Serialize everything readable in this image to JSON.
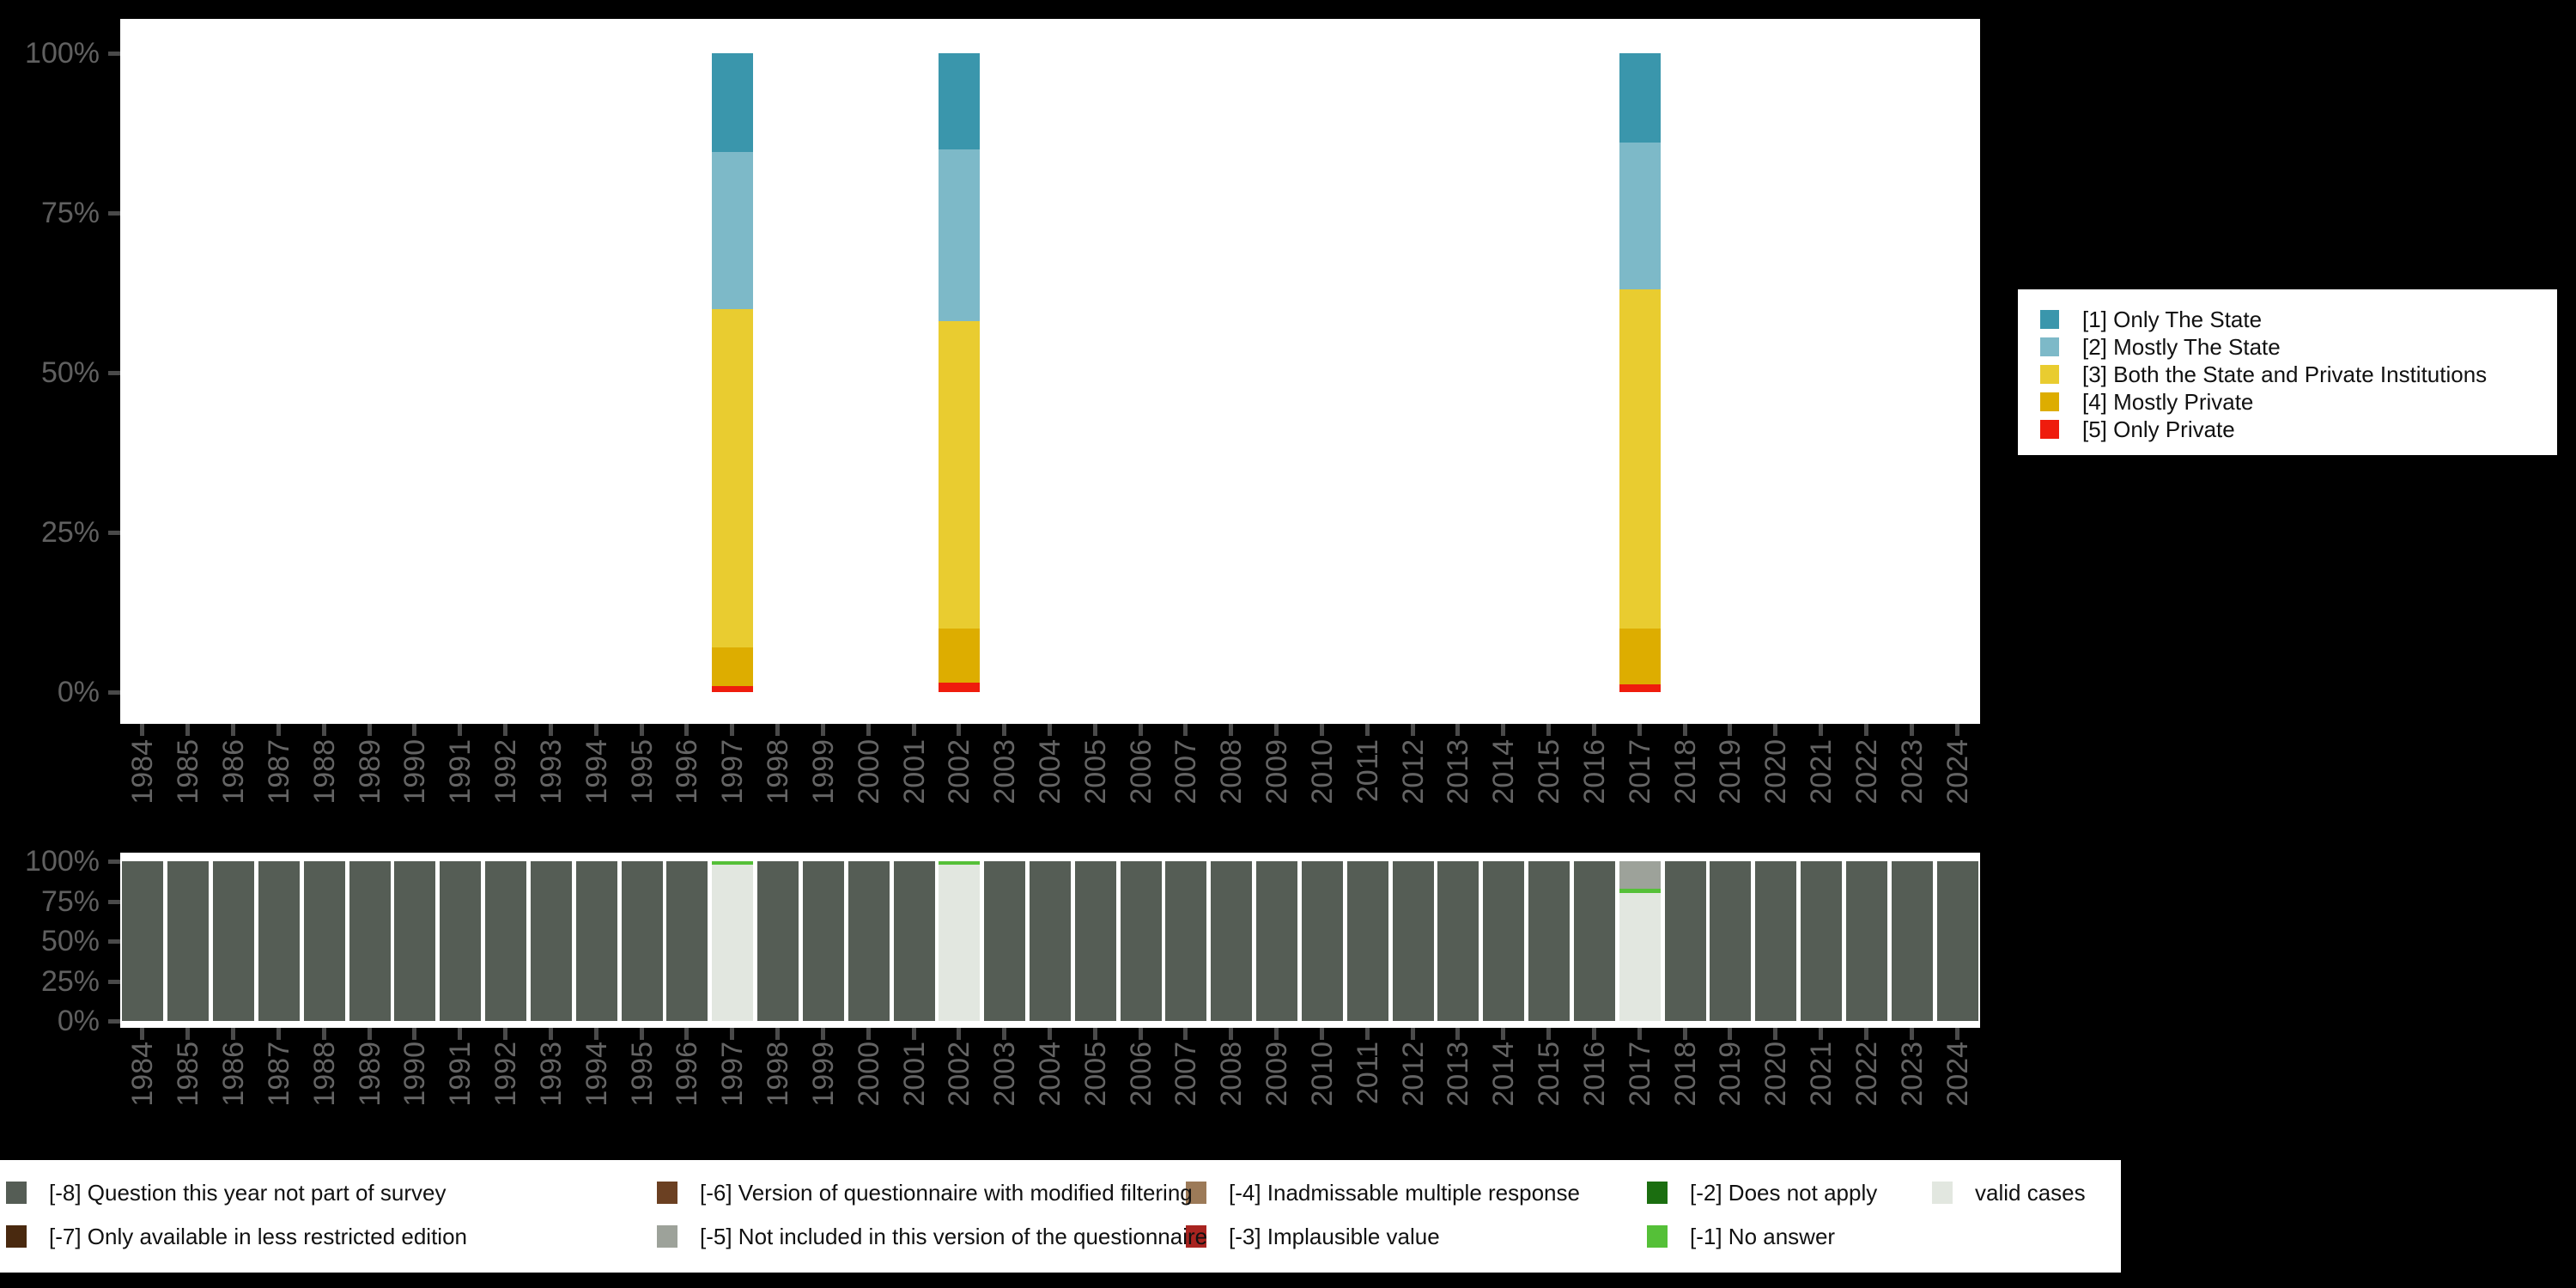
{
  "background_color": "#000000",
  "axis": {
    "tick_color": "#4a4a4a",
    "label_color": "#606060",
    "yticks": [
      "100%",
      "75%",
      "50%",
      "25%",
      "0%"
    ]
  },
  "chart_data": [
    {
      "id": "responses-by-year",
      "type": "bar",
      "stacked": true,
      "unit": "percent",
      "ylim": [
        0,
        100
      ],
      "grid": false,
      "legend_position": "right",
      "x": [
        "1984",
        "1985",
        "1986",
        "1987",
        "1988",
        "1989",
        "1990",
        "1991",
        "1992",
        "1993",
        "1994",
        "1995",
        "1996",
        "1997",
        "1998",
        "1999",
        "2000",
        "2001",
        "2002",
        "2003",
        "2004",
        "2005",
        "2006",
        "2007",
        "2008",
        "2009",
        "2010",
        "2011",
        "2012",
        "2013",
        "2014",
        "2015",
        "2016",
        "2017",
        "2018",
        "2019",
        "2020",
        "2021",
        "2022",
        "2023",
        "2024"
      ],
      "yticks": [
        "100%",
        "75%",
        "50%",
        "25%",
        "0%"
      ],
      "series": [
        {
          "name": "[1] Only The State",
          "color": "#3a96ac",
          "values": [
            0,
            0,
            0,
            0,
            0,
            0,
            0,
            0,
            0,
            0,
            0,
            0,
            0,
            15.5,
            0,
            0,
            0,
            0,
            15,
            0,
            0,
            0,
            0,
            0,
            0,
            0,
            0,
            0,
            0,
            0,
            0,
            0,
            0,
            14,
            0,
            0,
            0,
            0,
            0,
            0,
            0
          ]
        },
        {
          "name": "[2] Mostly The State",
          "color": "#7db9c8",
          "values": [
            0,
            0,
            0,
            0,
            0,
            0,
            0,
            0,
            0,
            0,
            0,
            0,
            0,
            24.5,
            0,
            0,
            0,
            0,
            27,
            0,
            0,
            0,
            0,
            0,
            0,
            0,
            0,
            0,
            0,
            0,
            0,
            0,
            0,
            23,
            0,
            0,
            0,
            0,
            0,
            0,
            0
          ]
        },
        {
          "name": "[3] Both the State and Private Institutions",
          "color": "#e9cc30",
          "values": [
            0,
            0,
            0,
            0,
            0,
            0,
            0,
            0,
            0,
            0,
            0,
            0,
            0,
            53,
            0,
            0,
            0,
            0,
            48,
            0,
            0,
            0,
            0,
            0,
            0,
            0,
            0,
            0,
            0,
            0,
            0,
            0,
            0,
            53,
            0,
            0,
            0,
            0,
            0,
            0,
            0
          ]
        },
        {
          "name": "[4] Mostly Private",
          "color": "#ddad00",
          "values": [
            0,
            0,
            0,
            0,
            0,
            0,
            0,
            0,
            0,
            0,
            0,
            0,
            0,
            6,
            0,
            0,
            0,
            0,
            8.5,
            0,
            0,
            0,
            0,
            0,
            0,
            0,
            0,
            0,
            0,
            0,
            0,
            0,
            0,
            8.8,
            0,
            0,
            0,
            0,
            0,
            0,
            0
          ]
        },
        {
          "name": "[5] Only Private",
          "color": "#ef1c0d",
          "values": [
            0,
            0,
            0,
            0,
            0,
            0,
            0,
            0,
            0,
            0,
            0,
            0,
            0,
            1,
            0,
            0,
            0,
            0,
            1.5,
            0,
            0,
            0,
            0,
            0,
            0,
            0,
            0,
            0,
            0,
            0,
            0,
            0,
            0,
            1.2,
            0,
            0,
            0,
            0,
            0,
            0,
            0
          ]
        }
      ]
    },
    {
      "id": "missing-values-by-year",
      "type": "bar",
      "stacked": true,
      "unit": "percent",
      "ylim": [
        0,
        100
      ],
      "grid": false,
      "legend_position": "bottom",
      "x": [
        "1984",
        "1985",
        "1986",
        "1987",
        "1988",
        "1989",
        "1990",
        "1991",
        "1992",
        "1993",
        "1994",
        "1995",
        "1996",
        "1997",
        "1998",
        "1999",
        "2000",
        "2001",
        "2002",
        "2003",
        "2004",
        "2005",
        "2006",
        "2007",
        "2008",
        "2009",
        "2010",
        "2011",
        "2012",
        "2013",
        "2014",
        "2015",
        "2016",
        "2017",
        "2018",
        "2019",
        "2020",
        "2021",
        "2022",
        "2023",
        "2024"
      ],
      "yticks": [
        "100%",
        "75%",
        "50%",
        "25%",
        "0%"
      ],
      "series": [
        {
          "name": "[-8] Question this year not part of survey",
          "color": "#555d55",
          "values": [
            100,
            100,
            100,
            100,
            100,
            100,
            100,
            100,
            100,
            100,
            100,
            100,
            100,
            0,
            100,
            100,
            100,
            100,
            0,
            100,
            100,
            100,
            100,
            100,
            100,
            100,
            100,
            100,
            100,
            100,
            100,
            100,
            100,
            0,
            100,
            100,
            100,
            100,
            100,
            100,
            100
          ]
        },
        {
          "name": "[-7] Only available in less restricted edition",
          "color": "#49290f",
          "values": [
            0,
            0,
            0,
            0,
            0,
            0,
            0,
            0,
            0,
            0,
            0,
            0,
            0,
            0,
            0,
            0,
            0,
            0,
            0,
            0,
            0,
            0,
            0,
            0,
            0,
            0,
            0,
            0,
            0,
            0,
            0,
            0,
            0,
            0,
            0,
            0,
            0,
            0,
            0,
            0,
            0
          ]
        },
        {
          "name": "[-6] Version of questionnaire with modified filtering",
          "color": "#6b4022",
          "values": [
            0,
            0,
            0,
            0,
            0,
            0,
            0,
            0,
            0,
            0,
            0,
            0,
            0,
            0,
            0,
            0,
            0,
            0,
            0,
            0,
            0,
            0,
            0,
            0,
            0,
            0,
            0,
            0,
            0,
            0,
            0,
            0,
            0,
            0,
            0,
            0,
            0,
            0,
            0,
            0,
            0
          ]
        },
        {
          "name": "[-5] Not included in this version of the questionnaire",
          "color": "#9da29a",
          "values": [
            0,
            0,
            0,
            0,
            0,
            0,
            0,
            0,
            0,
            0,
            0,
            0,
            0,
            0,
            0,
            0,
            0,
            0,
            0,
            0,
            0,
            0,
            0,
            0,
            0,
            0,
            0,
            0,
            0,
            0,
            0,
            0,
            0,
            17,
            0,
            0,
            0,
            0,
            0,
            0,
            0
          ]
        },
        {
          "name": "[-4] Inadmissable multiple response",
          "color": "#9c7a58",
          "values": [
            0,
            0,
            0,
            0,
            0,
            0,
            0,
            0,
            0,
            0,
            0,
            0,
            0,
            0,
            0,
            0,
            0,
            0,
            0,
            0,
            0,
            0,
            0,
            0,
            0,
            0,
            0,
            0,
            0,
            0,
            0,
            0,
            0,
            0,
            0,
            0,
            0,
            0,
            0,
            0,
            0
          ]
        },
        {
          "name": "[-3] Implausible value",
          "color": "#a82420",
          "values": [
            0,
            0,
            0,
            0,
            0,
            0,
            0,
            0,
            0,
            0,
            0,
            0,
            0,
            0,
            0,
            0,
            0,
            0,
            0,
            0,
            0,
            0,
            0,
            0,
            0,
            0,
            0,
            0,
            0,
            0,
            0,
            0,
            0,
            0,
            0,
            0,
            0,
            0,
            0,
            0,
            0
          ]
        },
        {
          "name": "[-2] Does not apply",
          "color": "#1b6e10",
          "values": [
            0,
            0,
            0,
            0,
            0,
            0,
            0,
            0,
            0,
            0,
            0,
            0,
            0,
            0,
            0,
            0,
            0,
            0,
            0,
            0,
            0,
            0,
            0,
            0,
            0,
            0,
            0,
            0,
            0,
            0,
            0,
            0,
            0,
            0,
            0,
            0,
            0,
            0,
            0,
            0,
            0
          ]
        },
        {
          "name": "[-1] No answer",
          "color": "#55c038",
          "values": [
            0,
            0,
            0,
            0,
            0,
            0,
            0,
            0,
            0,
            0,
            0,
            0,
            0,
            2,
            0,
            0,
            0,
            0,
            2,
            0,
            0,
            0,
            0,
            0,
            0,
            0,
            0,
            0,
            0,
            0,
            0,
            0,
            0,
            3,
            0,
            0,
            0,
            0,
            0,
            0,
            0
          ]
        },
        {
          "name": "valid cases",
          "color": "#e2e7e0",
          "values": [
            0,
            0,
            0,
            0,
            0,
            0,
            0,
            0,
            0,
            0,
            0,
            0,
            0,
            98,
            0,
            0,
            0,
            0,
            98,
            0,
            0,
            0,
            0,
            0,
            0,
            0,
            0,
            0,
            0,
            0,
            0,
            0,
            0,
            80,
            0,
            0,
            0,
            0,
            0,
            0,
            0
          ]
        }
      ]
    }
  ]
}
